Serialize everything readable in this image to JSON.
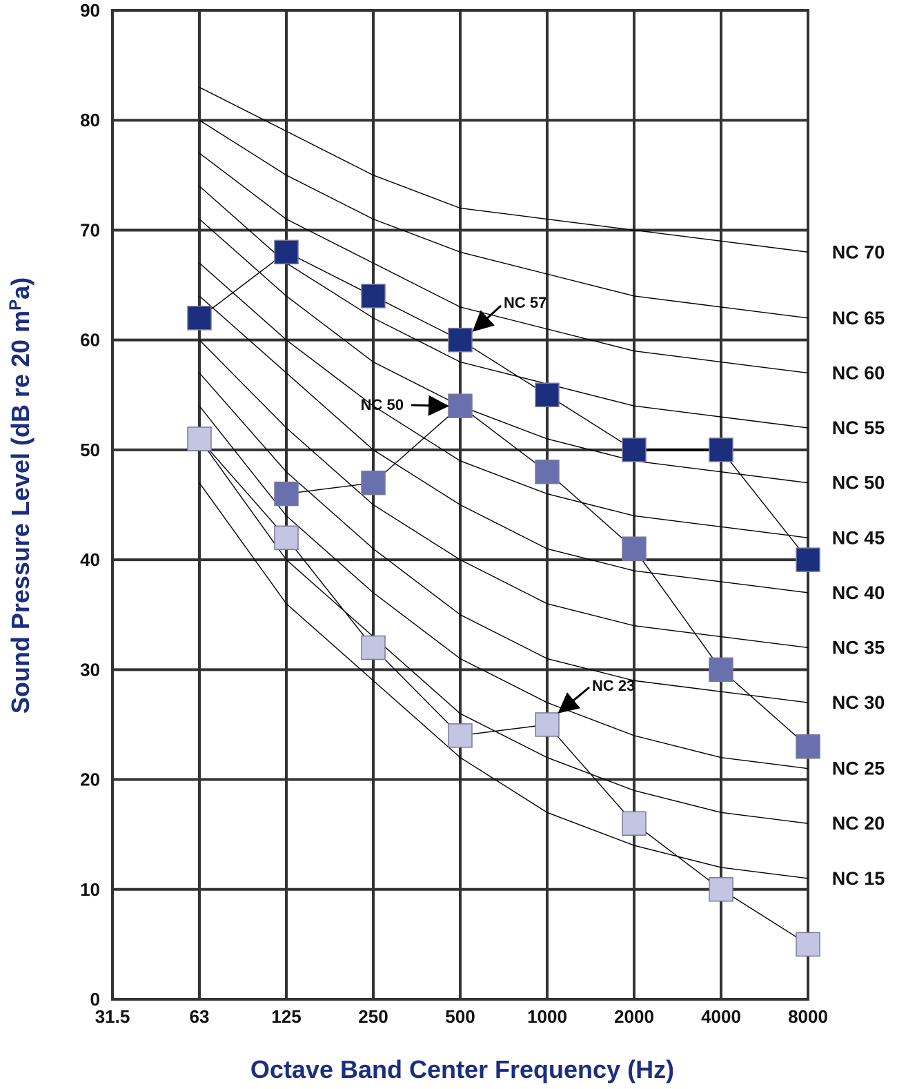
{
  "chart_data": {
    "type": "line",
    "xlabel": "Octave Band Center Frequency (Hz)",
    "ylabel_main": "Sound Pressure Level (dB re 20 mPa)",
    "ylabel_parts": {
      "pre": "Sound Pressure Level (dB re 20 m",
      "sup": "P",
      "post": "a)"
    },
    "x_categories": [
      "31.5",
      "63",
      "125",
      "250",
      "500",
      "1000",
      "2000",
      "4000",
      "8000"
    ],
    "y_ticks": [
      0,
      10,
      20,
      30,
      40,
      50,
      60,
      70,
      80,
      90
    ],
    "y_tick_labels": [
      "0",
      "10",
      "20",
      "30",
      "40",
      "50",
      "60",
      "70",
      "80",
      "90"
    ],
    "ylim": [
      0,
      90
    ],
    "grid": true,
    "nc_curves": [
      {
        "name": "NC 70",
        "label": "NC 70",
        "values": [
          83,
          79,
          75,
          72,
          71,
          70,
          69,
          68
        ]
      },
      {
        "name": "NC 65",
        "label": "NC 65",
        "values": [
          80,
          75,
          71,
          68,
          66,
          64,
          63,
          62
        ]
      },
      {
        "name": "NC 60",
        "label": "NC 60",
        "values": [
          77,
          71,
          67,
          63,
          61,
          59,
          58,
          57
        ]
      },
      {
        "name": "NC 55",
        "label": "NC 55",
        "values": [
          74,
          67,
          62,
          58,
          56,
          54,
          53,
          52
        ]
      },
      {
        "name": "NC 50",
        "label": "NC 50",
        "values": [
          71,
          64,
          58,
          54,
          51,
          49,
          48,
          47
        ]
      },
      {
        "name": "NC 45",
        "label": "NC 45",
        "values": [
          67,
          60,
          54,
          49,
          46,
          44,
          43,
          42
        ]
      },
      {
        "name": "NC 40",
        "label": "NC 40",
        "values": [
          64,
          57,
          50,
          45,
          41,
          39,
          38,
          37
        ]
      },
      {
        "name": "NC 35",
        "label": "NC 35",
        "values": [
          60,
          52,
          45,
          40,
          36,
          34,
          33,
          32
        ]
      },
      {
        "name": "NC 30",
        "label": "NC 30",
        "values": [
          57,
          48,
          41,
          35,
          31,
          29,
          28,
          27
        ]
      },
      {
        "name": "NC 25",
        "label": "NC 25",
        "values": [
          54,
          44,
          37,
          31,
          27,
          24,
          22,
          21
        ]
      },
      {
        "name": "NC 20",
        "label": "NC 20",
        "values": [
          51,
          40,
          33,
          26,
          22,
          19,
          17,
          16
        ]
      },
      {
        "name": "NC 15",
        "label": "NC 15",
        "values": [
          47,
          36,
          29,
          22,
          17,
          14,
          12,
          11
        ]
      }
    ],
    "series": [
      {
        "label": "NC 57",
        "color": "#1c2e7e",
        "x": [
          "63",
          "125",
          "250",
          "500",
          "1000",
          "2000",
          "4000",
          "8000"
        ],
        "values": [
          62,
          68,
          64,
          60,
          55,
          50,
          50,
          40
        ]
      },
      {
        "label": "NC 50",
        "color": "#6a6fae",
        "x": [
          "125",
          "250",
          "500",
          "1000",
          "2000",
          "4000",
          "8000"
        ],
        "values": [
          46,
          47,
          54,
          48,
          41,
          30,
          23
        ]
      },
      {
        "label": "NC 23",
        "color": "#c3c5e2",
        "x": [
          "63",
          "125",
          "250",
          "500",
          "1000",
          "2000",
          "4000",
          "8000"
        ],
        "values": [
          51,
          42,
          32,
          24,
          25,
          16,
          10,
          5
        ]
      }
    ],
    "annotations": [
      {
        "text": "NC 57",
        "points_to": {
          "x": "500",
          "y": 60
        }
      },
      {
        "text": "NC 50",
        "points_to": {
          "x": "500",
          "y": 54
        }
      },
      {
        "text": "NC 23",
        "points_to": {
          "x": "1000",
          "y": 25
        }
      }
    ],
    "colors": {
      "axis_title": "#1c2e7e",
      "grid": "#333333",
      "curve": "#000000"
    }
  }
}
